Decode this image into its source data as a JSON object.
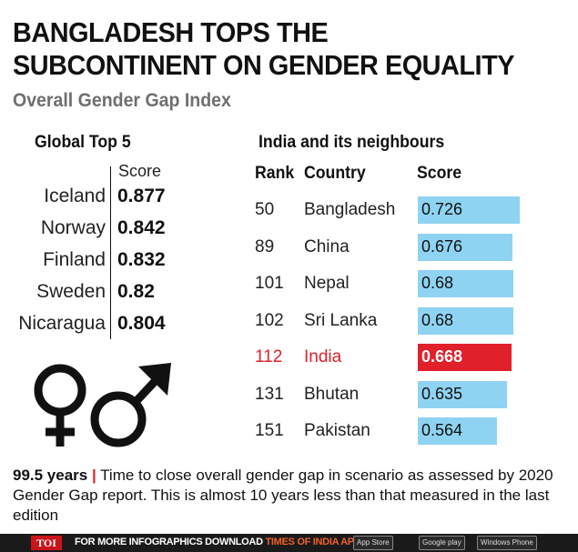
{
  "headline": "BANGLADESH TOPS THE SUBCONTINENT ON GENDER EQUALITY",
  "subtitle": "Overall Gender Gap Index",
  "chart_data": [
    {
      "type": "table",
      "title": "Global Top 5",
      "columns": [
        "",
        "Score"
      ],
      "rows": [
        {
          "country": "Iceland",
          "score": "0.877"
        },
        {
          "country": "Norway",
          "score": "0.842"
        },
        {
          "country": "Finland",
          "score": "0.832"
        },
        {
          "country": "Sweden",
          "score": "0.82"
        },
        {
          "country": "Nicaragua",
          "score": "0.804"
        }
      ]
    },
    {
      "type": "bar",
      "title": "India and its neighbours",
      "column_headers": {
        "rank": "Rank",
        "country": "Country",
        "score": "Score"
      },
      "xlim": [
        0,
        1
      ],
      "rows": [
        {
          "rank": "50",
          "country": "Bangladesh",
          "value": 0.726,
          "label": "0.726",
          "highlight": false
        },
        {
          "rank": "89",
          "country": "China",
          "value": 0.676,
          "label": "0.676",
          "highlight": false
        },
        {
          "rank": "101",
          "country": "Nepal",
          "value": 0.68,
          "label": "0.68",
          "highlight": false
        },
        {
          "rank": "102",
          "country": "Sri Lanka",
          "value": 0.68,
          "label": "0.68",
          "highlight": false
        },
        {
          "rank": "112",
          "country": "India",
          "value": 0.668,
          "label": "0.668",
          "highlight": true
        },
        {
          "rank": "131",
          "country": "Bhutan",
          "value": 0.635,
          "label": "0.635",
          "highlight": false
        },
        {
          "rank": "151",
          "country": "Pakistan",
          "value": 0.564,
          "label": "0.564",
          "highlight": false
        }
      ]
    }
  ],
  "footnote": {
    "years": "99.5 years",
    "separator": "|",
    "text": "Time to close overall gender gap in scenario as assessed by 2020 Gender Gap report. This is almost 10 years less than that measured in the last edition"
  },
  "footer": {
    "logo": "TOI",
    "text": "FOR MORE INFOGRAPHICS DOWNLOAD",
    "app_name": "TIMES OF INDIA APP",
    "stores": [
      "App Store",
      "Google play",
      "Windows Phone"
    ]
  },
  "colors": {
    "bar": "#8fd3f2",
    "highlight": "#e0202a",
    "subtitle": "#6f6f6f"
  }
}
